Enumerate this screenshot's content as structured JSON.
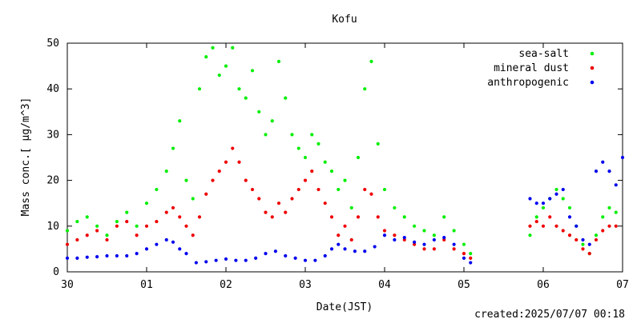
{
  "chart_data": {
    "type": "scatter",
    "title": "Kofu",
    "xlabel": "Date(JST)",
    "ylabel": "Mass conc.[ µg/m^3]",
    "xlim": [
      "2025-06-30",
      "2025-07-07"
    ],
    "ylim": [
      0,
      50
    ],
    "yticks": [
      0,
      10,
      20,
      30,
      40,
      50
    ],
    "xticks": [
      "30",
      "01",
      "02",
      "03",
      "04",
      "05",
      "06",
      "07"
    ],
    "grid": false,
    "legend_position": "top-right",
    "footer": "created:2025/07/07 00:18",
    "series": [
      {
        "name": "sea-salt",
        "color": "#00ee00",
        "points": [
          [
            "2025-06-30T00:00",
            9
          ],
          [
            "2025-06-30T03:00",
            11
          ],
          [
            "2025-06-30T06:00",
            12
          ],
          [
            "2025-06-30T09:00",
            10
          ],
          [
            "2025-06-30T12:00",
            8
          ],
          [
            "2025-06-30T15:00",
            11
          ],
          [
            "2025-06-30T18:00",
            13
          ],
          [
            "2025-06-30T21:00",
            10
          ],
          [
            "2025-07-01T00:00",
            15
          ],
          [
            "2025-07-01T03:00",
            18
          ],
          [
            "2025-07-01T06:00",
            22
          ],
          [
            "2025-07-01T08:00",
            27
          ],
          [
            "2025-07-01T10:00",
            33
          ],
          [
            "2025-07-01T12:00",
            20
          ],
          [
            "2025-07-01T14:00",
            16
          ],
          [
            "2025-07-01T16:00",
            40
          ],
          [
            "2025-07-01T18:00",
            47
          ],
          [
            "2025-07-01T20:00",
            49
          ],
          [
            "2025-07-01T22:00",
            43
          ],
          [
            "2025-07-02T00:00",
            45
          ],
          [
            "2025-07-02T02:00",
            49
          ],
          [
            "2025-07-02T04:00",
            40
          ],
          [
            "2025-07-02T06:00",
            38
          ],
          [
            "2025-07-02T08:00",
            44
          ],
          [
            "2025-07-02T10:00",
            35
          ],
          [
            "2025-07-02T12:00",
            30
          ],
          [
            "2025-07-02T14:00",
            33
          ],
          [
            "2025-07-02T16:00",
            46
          ],
          [
            "2025-07-02T18:00",
            38
          ],
          [
            "2025-07-02T20:00",
            30
          ],
          [
            "2025-07-02T22:00",
            27
          ],
          [
            "2025-07-03T00:00",
            25
          ],
          [
            "2025-07-03T02:00",
            30
          ],
          [
            "2025-07-03T04:00",
            28
          ],
          [
            "2025-07-03T06:00",
            24
          ],
          [
            "2025-07-03T08:00",
            22
          ],
          [
            "2025-07-03T10:00",
            18
          ],
          [
            "2025-07-03T12:00",
            20
          ],
          [
            "2025-07-03T14:00",
            14
          ],
          [
            "2025-07-03T16:00",
            25
          ],
          [
            "2025-07-03T18:00",
            40
          ],
          [
            "2025-07-03T20:00",
            46
          ],
          [
            "2025-07-03T22:00",
            28
          ],
          [
            "2025-07-04T00:00",
            18
          ],
          [
            "2025-07-04T03:00",
            14
          ],
          [
            "2025-07-04T06:00",
            12
          ],
          [
            "2025-07-04T09:00",
            10
          ],
          [
            "2025-07-04T12:00",
            9
          ],
          [
            "2025-07-04T15:00",
            8
          ],
          [
            "2025-07-04T18:00",
            12
          ],
          [
            "2025-07-04T21:00",
            9
          ],
          [
            "2025-07-05T00:00",
            6
          ],
          [
            "2025-07-05T02:00",
            4
          ],
          [
            "2025-07-05T20:00",
            8
          ],
          [
            "2025-07-05T22:00",
            12
          ],
          [
            "2025-07-06T00:00",
            14
          ],
          [
            "2025-07-06T02:00",
            16
          ],
          [
            "2025-07-06T04:00",
            18
          ],
          [
            "2025-07-06T06:00",
            16
          ],
          [
            "2025-07-06T08:00",
            14
          ],
          [
            "2025-07-06T10:00",
            10
          ],
          [
            "2025-07-06T12:00",
            6
          ],
          [
            "2025-07-06T14:00",
            4
          ],
          [
            "2025-07-06T16:00",
            8
          ],
          [
            "2025-07-06T18:00",
            12
          ],
          [
            "2025-07-06T20:00",
            14
          ],
          [
            "2025-07-06T22:00",
            13
          ]
        ]
      },
      {
        "name": "mineral dust",
        "color": "#ee0000",
        "points": [
          [
            "2025-06-30T00:00",
            6
          ],
          [
            "2025-06-30T03:00",
            7
          ],
          [
            "2025-06-30T06:00",
            8
          ],
          [
            "2025-06-30T09:00",
            9
          ],
          [
            "2025-06-30T12:00",
            7
          ],
          [
            "2025-06-30T15:00",
            10
          ],
          [
            "2025-06-30T18:00",
            11
          ],
          [
            "2025-06-30T21:00",
            8
          ],
          [
            "2025-07-01T00:00",
            10
          ],
          [
            "2025-07-01T03:00",
            11
          ],
          [
            "2025-07-01T06:00",
            13
          ],
          [
            "2025-07-01T08:00",
            14
          ],
          [
            "2025-07-01T10:00",
            12
          ],
          [
            "2025-07-01T12:00",
            10
          ],
          [
            "2025-07-01T14:00",
            8
          ],
          [
            "2025-07-01T16:00",
            12
          ],
          [
            "2025-07-01T18:00",
            17
          ],
          [
            "2025-07-01T20:00",
            20
          ],
          [
            "2025-07-01T22:00",
            22
          ],
          [
            "2025-07-02T00:00",
            24
          ],
          [
            "2025-07-02T02:00",
            27
          ],
          [
            "2025-07-02T04:00",
            24
          ],
          [
            "2025-07-02T06:00",
            20
          ],
          [
            "2025-07-02T08:00",
            18
          ],
          [
            "2025-07-02T10:00",
            16
          ],
          [
            "2025-07-02T12:00",
            13
          ],
          [
            "2025-07-02T14:00",
            12
          ],
          [
            "2025-07-02T16:00",
            15
          ],
          [
            "2025-07-02T18:00",
            13
          ],
          [
            "2025-07-02T20:00",
            16
          ],
          [
            "2025-07-02T22:00",
            18
          ],
          [
            "2025-07-03T00:00",
            20
          ],
          [
            "2025-07-03T02:00",
            22
          ],
          [
            "2025-07-03T04:00",
            18
          ],
          [
            "2025-07-03T06:00",
            15
          ],
          [
            "2025-07-03T08:00",
            12
          ],
          [
            "2025-07-03T10:00",
            8
          ],
          [
            "2025-07-03T12:00",
            10
          ],
          [
            "2025-07-03T14:00",
            7
          ],
          [
            "2025-07-03T16:00",
            12
          ],
          [
            "2025-07-03T18:00",
            18
          ],
          [
            "2025-07-03T20:00",
            17
          ],
          [
            "2025-07-03T22:00",
            12
          ],
          [
            "2025-07-04T00:00",
            9
          ],
          [
            "2025-07-04T03:00",
            8
          ],
          [
            "2025-07-04T06:00",
            7
          ],
          [
            "2025-07-04T09:00",
            6
          ],
          [
            "2025-07-04T12:00",
            5
          ],
          [
            "2025-07-04T15:00",
            5
          ],
          [
            "2025-07-04T18:00",
            7
          ],
          [
            "2025-07-04T21:00",
            5
          ],
          [
            "2025-07-05T00:00",
            4
          ],
          [
            "2025-07-05T02:00",
            3
          ],
          [
            "2025-07-05T20:00",
            10
          ],
          [
            "2025-07-05T22:00",
            11
          ],
          [
            "2025-07-06T00:00",
            10
          ],
          [
            "2025-07-06T02:00",
            12
          ],
          [
            "2025-07-06T04:00",
            10
          ],
          [
            "2025-07-06T06:00",
            9
          ],
          [
            "2025-07-06T08:00",
            8
          ],
          [
            "2025-07-06T10:00",
            7
          ],
          [
            "2025-07-06T12:00",
            5
          ],
          [
            "2025-07-06T14:00",
            4
          ],
          [
            "2025-07-06T16:00",
            7
          ],
          [
            "2025-07-06T18:00",
            9
          ],
          [
            "2025-07-06T20:00",
            10
          ],
          [
            "2025-07-06T22:00",
            10
          ]
        ]
      },
      {
        "name": "anthropogenic",
        "color": "#0000ee",
        "points": [
          [
            "2025-06-30T00:00",
            3
          ],
          [
            "2025-06-30T03:00",
            3
          ],
          [
            "2025-06-30T06:00",
            3.2
          ],
          [
            "2025-06-30T09:00",
            3.3
          ],
          [
            "2025-06-30T12:00",
            3.5
          ],
          [
            "2025-06-30T15:00",
            3.5
          ],
          [
            "2025-06-30T18:00",
            3.5
          ],
          [
            "2025-06-30T21:00",
            4
          ],
          [
            "2025-07-01T00:00",
            5
          ],
          [
            "2025-07-01T03:00",
            6
          ],
          [
            "2025-07-01T06:00",
            7
          ],
          [
            "2025-07-01T08:00",
            6.5
          ],
          [
            "2025-07-01T10:00",
            5
          ],
          [
            "2025-07-01T12:00",
            4
          ],
          [
            "2025-07-01T15:00",
            2
          ],
          [
            "2025-07-01T18:00",
            2.2
          ],
          [
            "2025-07-01T21:00",
            2.5
          ],
          [
            "2025-07-02T00:00",
            2.8
          ],
          [
            "2025-07-02T03:00",
            2.5
          ],
          [
            "2025-07-02T06:00",
            2.5
          ],
          [
            "2025-07-02T09:00",
            3
          ],
          [
            "2025-07-02T12:00",
            4
          ],
          [
            "2025-07-02T15:00",
            4.5
          ],
          [
            "2025-07-02T18:00",
            3.5
          ],
          [
            "2025-07-02T21:00",
            3
          ],
          [
            "2025-07-03T00:00",
            2.5
          ],
          [
            "2025-07-03T03:00",
            2.5
          ],
          [
            "2025-07-03T06:00",
            3.5
          ],
          [
            "2025-07-03T08:00",
            5
          ],
          [
            "2025-07-03T10:00",
            6
          ],
          [
            "2025-07-03T12:00",
            5
          ],
          [
            "2025-07-03T15:00",
            4.5
          ],
          [
            "2025-07-03T18:00",
            4.5
          ],
          [
            "2025-07-03T21:00",
            5.5
          ],
          [
            "2025-07-04T00:00",
            8
          ],
          [
            "2025-07-04T03:00",
            7
          ],
          [
            "2025-07-04T06:00",
            7.5
          ],
          [
            "2025-07-04T09:00",
            6.5
          ],
          [
            "2025-07-04T12:00",
            6
          ],
          [
            "2025-07-04T15:00",
            7
          ],
          [
            "2025-07-04T18:00",
            7.5
          ],
          [
            "2025-07-04T21:00",
            6
          ],
          [
            "2025-07-05T00:00",
            3
          ],
          [
            "2025-07-05T02:00",
            2
          ],
          [
            "2025-07-05T20:00",
            16
          ],
          [
            "2025-07-05T22:00",
            15
          ],
          [
            "2025-07-06T00:00",
            15
          ],
          [
            "2025-07-06T02:00",
            16
          ],
          [
            "2025-07-06T04:00",
            17
          ],
          [
            "2025-07-06T06:00",
            18
          ],
          [
            "2025-07-06T08:00",
            12
          ],
          [
            "2025-07-06T10:00",
            10
          ],
          [
            "2025-07-06T12:00",
            7
          ],
          [
            "2025-07-06T14:00",
            6
          ],
          [
            "2025-07-06T16:00",
            22
          ],
          [
            "2025-07-06T18:00",
            24
          ],
          [
            "2025-07-06T20:00",
            22
          ],
          [
            "2025-07-06T22:00",
            19
          ],
          [
            "2025-07-07T00:00",
            25
          ]
        ]
      }
    ]
  }
}
